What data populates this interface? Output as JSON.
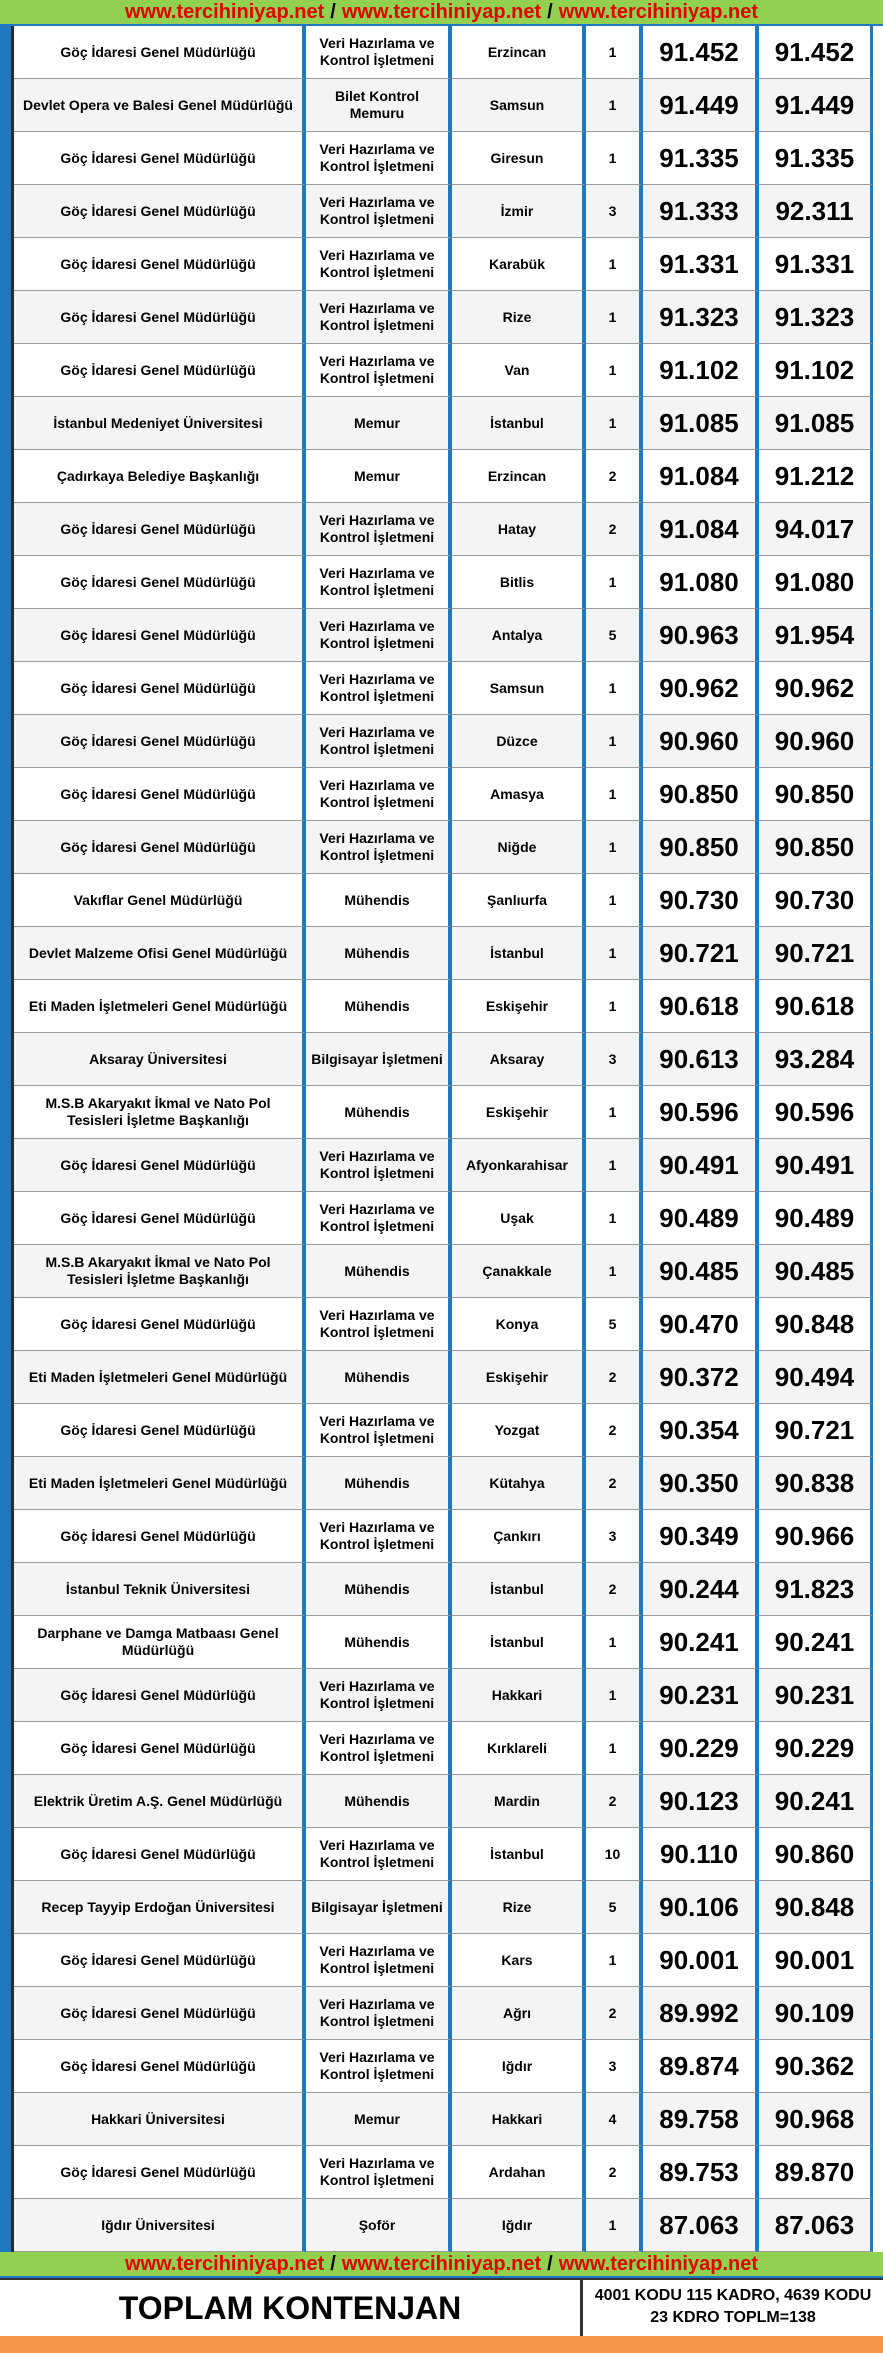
{
  "top_banner": [
    "www.tercihiniyap.net",
    "/",
    "www.tercihiniyap.net",
    "/",
    "www.tercihiniyap.net"
  ],
  "table": {
    "rows": [
      [
        "Göç İdaresi Genel Müdürlüğü",
        "Veri Hazırlama ve Kontrol İşletmeni",
        "Erzincan",
        "1",
        "91.452",
        "91.452"
      ],
      [
        "Devlet Opera ve Balesi Genel Müdürlüğü",
        "Bilet Kontrol Memuru",
        "Samsun",
        "1",
        "91.449",
        "91.449"
      ],
      [
        "Göç İdaresi Genel Müdürlüğü",
        "Veri Hazırlama ve Kontrol İşletmeni",
        "Giresun",
        "1",
        "91.335",
        "91.335"
      ],
      [
        "Göç İdaresi Genel Müdürlüğü",
        "Veri Hazırlama ve Kontrol İşletmeni",
        "İzmir",
        "3",
        "91.333",
        "92.311"
      ],
      [
        "Göç İdaresi Genel Müdürlüğü",
        "Veri Hazırlama ve Kontrol İşletmeni",
        "Karabük",
        "1",
        "91.331",
        "91.331"
      ],
      [
        "Göç İdaresi Genel Müdürlüğü",
        "Veri Hazırlama ve Kontrol İşletmeni",
        "Rize",
        "1",
        "91.323",
        "91.323"
      ],
      [
        "Göç İdaresi Genel Müdürlüğü",
        "Veri Hazırlama ve Kontrol İşletmeni",
        "Van",
        "1",
        "91.102",
        "91.102"
      ],
      [
        "İstanbul Medeniyet Üniversitesi",
        "Memur",
        "İstanbul",
        "1",
        "91.085",
        "91.085"
      ],
      [
        "Çadırkaya Belediye Başkanlığı",
        "Memur",
        "Erzincan",
        "2",
        "91.084",
        "91.212"
      ],
      [
        "Göç İdaresi Genel Müdürlüğü",
        "Veri Hazırlama ve Kontrol İşletmeni",
        "Hatay",
        "2",
        "91.084",
        "94.017"
      ],
      [
        "Göç İdaresi Genel Müdürlüğü",
        "Veri Hazırlama ve Kontrol İşletmeni",
        "Bitlis",
        "1",
        "91.080",
        "91.080"
      ],
      [
        "Göç İdaresi Genel Müdürlüğü",
        "Veri Hazırlama ve Kontrol İşletmeni",
        "Antalya",
        "5",
        "90.963",
        "91.954"
      ],
      [
        "Göç İdaresi Genel Müdürlüğü",
        "Veri Hazırlama ve Kontrol İşletmeni",
        "Samsun",
        "1",
        "90.962",
        "90.962"
      ],
      [
        "Göç İdaresi Genel Müdürlüğü",
        "Veri Hazırlama ve Kontrol İşletmeni",
        "Düzce",
        "1",
        "90.960",
        "90.960"
      ],
      [
        "Göç İdaresi Genel Müdürlüğü",
        "Veri Hazırlama ve Kontrol İşletmeni",
        "Amasya",
        "1",
        "90.850",
        "90.850"
      ],
      [
        "Göç İdaresi Genel Müdürlüğü",
        "Veri Hazırlama ve Kontrol İşletmeni",
        "Niğde",
        "1",
        "90.850",
        "90.850"
      ],
      [
        "Vakıflar Genel Müdürlüğü",
        "Mühendis",
        "Şanlıurfa",
        "1",
        "90.730",
        "90.730"
      ],
      [
        "Devlet Malzeme Ofisi Genel Müdürlüğü",
        "Mühendis",
        "İstanbul",
        "1",
        "90.721",
        "90.721"
      ],
      [
        "Eti Maden İşletmeleri Genel Müdürlüğü",
        "Mühendis",
        "Eskişehir",
        "1",
        "90.618",
        "90.618"
      ],
      [
        "Aksaray Üniversitesi",
        "Bilgisayar İşletmeni",
        "Aksaray",
        "3",
        "90.613",
        "93.284"
      ],
      [
        "M.S.B Akaryakıt İkmal ve Nato Pol Tesisleri İşletme Başkanlığı",
        "Mühendis",
        "Eskişehir",
        "1",
        "90.596",
        "90.596"
      ],
      [
        "Göç İdaresi Genel Müdürlüğü",
        "Veri Hazırlama ve Kontrol İşletmeni",
        "Afyonkarahisar",
        "1",
        "90.491",
        "90.491"
      ],
      [
        "Göç İdaresi Genel Müdürlüğü",
        "Veri Hazırlama ve Kontrol İşletmeni",
        "Uşak",
        "1",
        "90.489",
        "90.489"
      ],
      [
        "M.S.B Akaryakıt İkmal ve Nato Pol Tesisleri İşletme Başkanlığı",
        "Mühendis",
        "Çanakkale",
        "1",
        "90.485",
        "90.485"
      ],
      [
        "Göç İdaresi Genel Müdürlüğü",
        "Veri Hazırlama ve Kontrol İşletmeni",
        "Konya",
        "5",
        "90.470",
        "90.848"
      ],
      [
        "Eti Maden İşletmeleri Genel Müdürlüğü",
        "Mühendis",
        "Eskişehir",
        "2",
        "90.372",
        "90.494"
      ],
      [
        "Göç İdaresi Genel Müdürlüğü",
        "Veri Hazırlama ve Kontrol İşletmeni",
        "Yozgat",
        "2",
        "90.354",
        "90.721"
      ],
      [
        "Eti Maden İşletmeleri Genel Müdürlüğü",
        "Mühendis",
        "Kütahya",
        "2",
        "90.350",
        "90.838"
      ],
      [
        "Göç İdaresi Genel Müdürlüğü",
        "Veri Hazırlama ve Kontrol İşletmeni",
        "Çankırı",
        "3",
        "90.349",
        "90.966"
      ],
      [
        "İstanbul Teknik Üniversitesi",
        "Mühendis",
        "İstanbul",
        "2",
        "90.244",
        "91.823"
      ],
      [
        "Darphane ve Damga Matbaası Genel Müdürlüğü",
        "Mühendis",
        "İstanbul",
        "1",
        "90.241",
        "90.241"
      ],
      [
        "Göç İdaresi Genel Müdürlüğü",
        "Veri Hazırlama ve Kontrol İşletmeni",
        "Hakkari",
        "1",
        "90.231",
        "90.231"
      ],
      [
        "Göç İdaresi Genel Müdürlüğü",
        "Veri Hazırlama ve Kontrol İşletmeni",
        "Kırklareli",
        "1",
        "90.229",
        "90.229"
      ],
      [
        "Elektrik Üretim A.Ş. Genel Müdürlüğü",
        "Mühendis",
        "Mardin",
        "2",
        "90.123",
        "90.241"
      ],
      [
        "Göç İdaresi Genel Müdürlüğü",
        "Veri Hazırlama ve Kontrol İşletmeni",
        "İstanbul",
        "10",
        "90.110",
        "90.860"
      ],
      [
        "Recep Tayyip Erdoğan Üniversitesi",
        "Bilgisayar İşletmeni",
        "Rize",
        "5",
        "90.106",
        "90.848"
      ],
      [
        "Göç İdaresi Genel Müdürlüğü",
        "Veri Hazırlama ve Kontrol İşletmeni",
        "Kars",
        "1",
        "90.001",
        "90.001"
      ],
      [
        "Göç İdaresi Genel Müdürlüğü",
        "Veri Hazırlama ve Kontrol İşletmeni",
        "Ağrı",
        "2",
        "89.992",
        "90.109"
      ],
      [
        "Göç İdaresi Genel Müdürlüğü",
        "Veri Hazırlama ve Kontrol İşletmeni",
        "Iğdır",
        "3",
        "89.874",
        "90.362"
      ],
      [
        "Hakkari Üniversitesi",
        "Memur",
        "Hakkari",
        "4",
        "89.758",
        "90.968"
      ],
      [
        "Göç İdaresi Genel Müdürlüğü",
        "Veri Hazırlama ve Kontrol İşletmeni",
        "Ardahan",
        "2",
        "89.753",
        "89.870"
      ],
      [
        "Iğdır Üniversitesi",
        "Şoför",
        "Iğdır",
        "1",
        "87.063",
        "87.063"
      ]
    ]
  },
  "bottom_banner": [
    "www.tercihiniyap.net",
    "/",
    "www.tercihiniyap.net",
    "/",
    "www.tercihiniyap.net"
  ],
  "footer": {
    "label": "TOPLAM KONTENJAN",
    "note": "4001 KODU 115 KADRO, 4639 KODU 23 KDRO TOPLM=138"
  }
}
